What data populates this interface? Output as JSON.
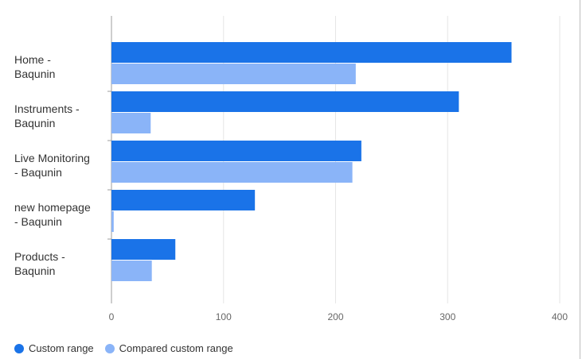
{
  "colors": {
    "custom_range": "#1a73e8",
    "compared_custom_range": "#8ab4f8",
    "grid": "#e6e6e6",
    "axis": "#9e9e9e"
  },
  "chart_data": {
    "type": "bar",
    "orientation": "horizontal",
    "title": "",
    "xlabel": "",
    "ylabel": "",
    "categories": [
      "Home -\nBaqunin",
      "Instruments -\nBaqunin",
      "Live Monitoring\n- Baqunin",
      "new homepage\n- Baqunin",
      "Products -\nBaqunin"
    ],
    "series": [
      {
        "name": "Custom range",
        "values": [
          357,
          310,
          223,
          128,
          57
        ]
      },
      {
        "name": "Compared custom range",
        "values": [
          218,
          35,
          215,
          2,
          36
        ]
      }
    ],
    "xlim": [
      0,
      400
    ],
    "x_ticks": [
      "0",
      "100",
      "200",
      "300",
      "400"
    ],
    "grid": true,
    "legend": "bottom-left"
  }
}
